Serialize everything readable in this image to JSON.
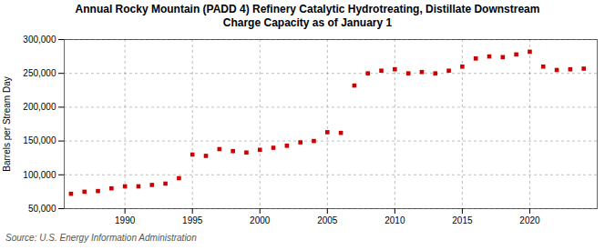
{
  "chart_data": {
    "type": "scatter",
    "title": "Annual Rocky Mountain (PADD 4) Refinery Catalytic Hydrotreating, Distillate Downstream",
    "subtitle": "Charge Capacity as of January 1",
    "ylabel": "Barrels per Stream Day",
    "source": "Source: U.S. Energy Information Administration",
    "x": [
      1986,
      1987,
      1988,
      1989,
      1990,
      1991,
      1992,
      1993,
      1994,
      1995,
      1996,
      1997,
      1998,
      1999,
      2000,
      2001,
      2002,
      2003,
      2004,
      2005,
      2006,
      2007,
      2008,
      2009,
      2010,
      2011,
      2012,
      2013,
      2014,
      2015,
      2016,
      2017,
      2018,
      2019,
      2020,
      2021,
      2022,
      2023,
      2024
    ],
    "values": [
      72000,
      75000,
      76000,
      80000,
      83000,
      83000,
      85000,
      87000,
      95000,
      130000,
      128000,
      138000,
      135000,
      133000,
      137000,
      140000,
      143000,
      148000,
      150000,
      163000,
      162000,
      232000,
      250000,
      254000,
      256000,
      250000,
      252000,
      250000,
      254000,
      260000,
      272000,
      275000,
      274000,
      278000,
      282000,
      260000,
      255000,
      256000,
      257000
    ],
    "color": "#cc0000",
    "marker": "square",
    "xlim": [
      1985.5,
      2025
    ],
    "xticks": [
      1990,
      1995,
      2000,
      2005,
      2010,
      2015,
      2020
    ],
    "ylim": [
      50000,
      300000
    ],
    "yticks": [
      {
        "value": 50000,
        "label": "50,000"
      },
      {
        "value": 100000,
        "label": "100,000"
      },
      {
        "value": 150000,
        "label": "150,000"
      },
      {
        "value": 200000,
        "label": "200,000"
      },
      {
        "value": 250000,
        "label": "250,000"
      },
      {
        "value": 300000,
        "label": "300,000"
      }
    ],
    "grid": true
  }
}
